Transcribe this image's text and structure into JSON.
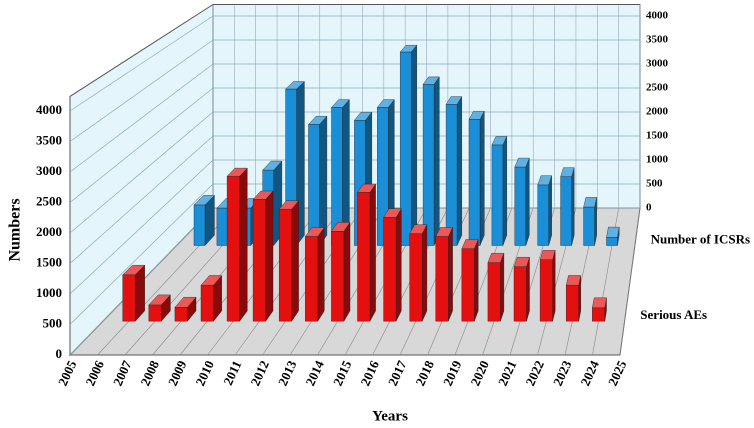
{
  "chart_data": {
    "type": "bar3d",
    "x_label": "Years",
    "y_label": "Numbers",
    "categories": [
      "2005",
      "2006",
      "2007",
      "2008",
      "2009",
      "2010",
      "2011",
      "2012",
      "2013",
      "2014",
      "2015",
      "2016",
      "2017",
      "2018",
      "2019",
      "2020",
      "2021",
      "2022",
      "2023",
      "2024",
      "2025"
    ],
    "series": [
      {
        "name": "Number of ICSRs",
        "color": "#1a8fd8",
        "axis": "y2",
        "values": [
          null,
          790,
          730,
          730,
          1470,
          3050,
          2360,
          2690,
          2440,
          2690,
          3770,
          3140,
          2750,
          2460,
          1960,
          1530,
          1180,
          1340,
          750,
          160,
          null
        ]
      },
      {
        "name": "Serious AEs",
        "color": "#e41010",
        "values": [
          null,
          800,
          280,
          240,
          620,
          2500,
          2100,
          1930,
          1460,
          1550,
          2220,
          1790,
          1510,
          1460,
          1250,
          1010,
          940,
          1060,
          620,
          230,
          null
        ]
      }
    ],
    "ylim": [
      0,
      4000
    ],
    "yticks": [
      0,
      500,
      1000,
      1500,
      2000,
      2500,
      3000,
      3500,
      4000
    ],
    "y2lim": [
      0,
      4000
    ],
    "y2ticks": [
      0,
      500,
      1000,
      1500,
      2000,
      2500,
      3000,
      3500,
      4000
    ],
    "grid": true
  }
}
